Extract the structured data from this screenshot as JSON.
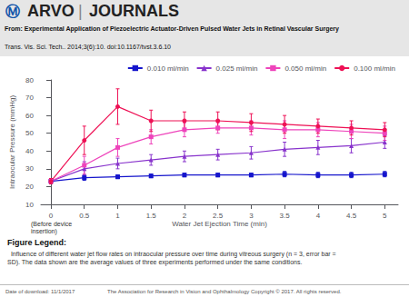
{
  "chart_data": {
    "type": "line",
    "xlabel": "Water Jet Ejection Time (min)",
    "ylabel": "Intraocular Pressure (mmHg)",
    "x": [
      0,
      0.5,
      1,
      1.5,
      2,
      2.5,
      3,
      3.5,
      4,
      4.5,
      5
    ],
    "xlim": [
      -0.15,
      5.2
    ],
    "xticks": [
      0,
      0.5,
      1,
      1.5,
      2,
      2.5,
      3,
      3.5,
      4,
      4.5,
      5
    ],
    "ylim": [
      10,
      80
    ],
    "yticks": [
      10,
      20,
      30,
      40,
      50,
      60,
      70,
      80
    ],
    "grid": false,
    "legend": "upper right",
    "series": [
      {
        "name": "0.010 ml/min",
        "color": "#1515CC",
        "marker": "square",
        "values": [
          23,
          25,
          25.5,
          26,
          26.5,
          26.5,
          26.5,
          27,
          26.5,
          26.5,
          27
        ],
        "yerr": [
          1,
          1.5,
          1,
          1,
          1,
          1,
          1,
          1.5,
          1.5,
          1.5,
          1.5
        ]
      },
      {
        "name": "0.025 ml/min",
        "color": "#8833CC",
        "marker": "triangle",
        "values": [
          23,
          30,
          33,
          35,
          37,
          38,
          39,
          41,
          42,
          43,
          45
        ],
        "yerr": [
          1.5,
          4,
          3,
          3,
          3,
          3,
          3.5,
          4,
          4,
          4,
          3.5
        ]
      },
      {
        "name": "0.050 ml/min",
        "color": "#EE44BB",
        "marker": "square",
        "values": [
          23,
          32,
          42,
          48,
          52,
          53,
          53,
          52,
          52,
          51,
          50
        ],
        "yerr": [
          1.5,
          5,
          5,
          4,
          4,
          3,
          4,
          5,
          4,
          4,
          4
        ]
      },
      {
        "name": "0.100 ml/min",
        "color": "#EE1155",
        "marker": "circle",
        "values": [
          23,
          46,
          65,
          57,
          57,
          57,
          56,
          55,
          54,
          53,
          52
        ],
        "yerr": [
          1.5,
          8,
          10,
          6,
          5,
          5,
          5,
          5,
          4,
          4,
          4
        ]
      }
    ],
    "annotations": [
      "Ⓜ",
      "ARVO",
      "|",
      "JOURNALS",
      "From: Experimental Application of Piezoelectric Actuator-Driven Pulsed Water Jets in Retinal Vascular Surgery",
      "Trans. Vis. Sci. Tech.. 2014;3(6):10. doi:10.1167/tvst.3.6.10",
      "(Before device",
      "insertion)",
      "Figure Legend:",
      "  Influence of different water jet flow rates on intraocular pressure over time during vitreous surgery (n = 3, error bar =\nSD). The data shown are the average values of three experiments performed under the same conditions.",
      "Date of download: 11/1/2017",
      "The Association for Research in Vision and Ophthalmology Copyright © 2017. All rights reserved."
    ]
  }
}
